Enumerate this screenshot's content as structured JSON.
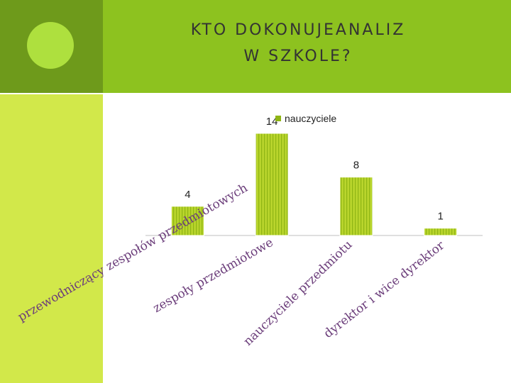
{
  "slide": {
    "title_line1": "KTO DOKONUJEANALIZ",
    "title_line2": "W SZKOLE?"
  },
  "colors": {
    "header": "#8dc21f",
    "header_left": "#6e9a1b",
    "sidebar": "#d2e84a",
    "bar": "#b9d52c",
    "bar_stripe": "#8fb514",
    "label": "#6b3d7a"
  },
  "chart_data": {
    "type": "bar",
    "categories": [
      "przewodniczący zespołów przedmiotowych",
      "zespoły przedmiotowe",
      "nauczyciele przedmiotu",
      "dyrektor i wice dyrektor"
    ],
    "series": [
      {
        "name": "nauczyciele",
        "values": [
          4,
          14,
          8,
          1
        ]
      }
    ],
    "legend": "top",
    "grid": false
  }
}
